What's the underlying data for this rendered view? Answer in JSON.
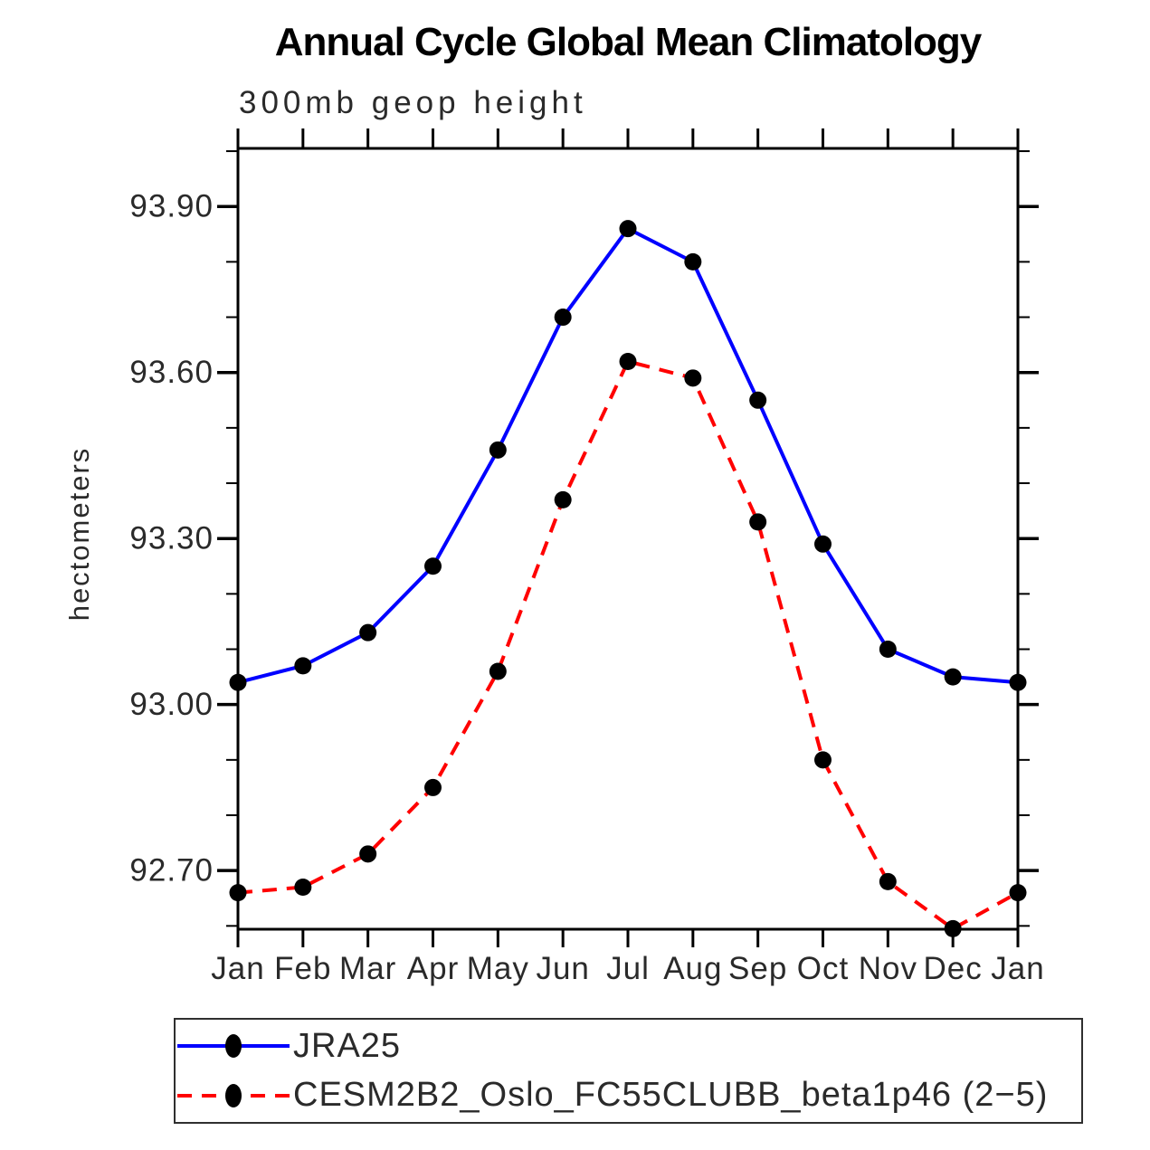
{
  "chart_data": {
    "type": "line",
    "title": "Annual Cycle Global Mean Climatology",
    "subtitle": "300mb geop height",
    "ylabel": "hectometers",
    "xlabel": "",
    "categories": [
      "Jan",
      "Feb",
      "Mar",
      "Apr",
      "May",
      "Jun",
      "Jul",
      "Aug",
      "Sep",
      "Oct",
      "Nov",
      "Dec",
      "Jan"
    ],
    "ylim": [
      92.594,
      94.005
    ],
    "grid": false,
    "legend_position": "bottom-left box",
    "yticks": {
      "major_values": [
        93.9,
        93.6,
        93.3,
        93.0,
        92.7
      ],
      "major_labels": [
        "93.90",
        "93.60",
        "93.30",
        "93.00",
        "92.70"
      ],
      "minor_step": 0.1
    },
    "colors": {
      "axis": "#000000",
      "text": "#2a2a2a",
      "series1": "#0000ff",
      "series2": "#ff0000",
      "marker": "#000000"
    },
    "series": [
      {
        "name": "JRA25",
        "color": "#0000ff",
        "line_style": "solid",
        "marker": "filled-circle",
        "marker_color": "#000000",
        "values": [
          93.04,
          93.07,
          93.13,
          93.25,
          93.46,
          93.7,
          93.86,
          93.8,
          93.55,
          93.29,
          93.1,
          93.05,
          93.04
        ]
      },
      {
        "name": "CESM2B2_Oslo_FC55CLUBB_beta1p46 (2−5)",
        "color": "#ff0000",
        "line_style": "dashed",
        "marker": "filled-circle",
        "marker_color": "#000000",
        "values": [
          92.66,
          92.67,
          92.73,
          92.85,
          93.06,
          93.37,
          93.62,
          93.59,
          93.33,
          92.9,
          92.68,
          92.595,
          92.66
        ]
      }
    ]
  }
}
